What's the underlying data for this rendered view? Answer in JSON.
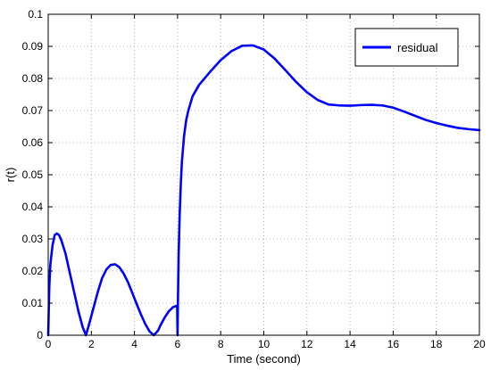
{
  "chart_data": {
    "type": "line",
    "xlabel": "Time (second)",
    "ylabel": "r(t)",
    "xlim": [
      0,
      20
    ],
    "ylim": [
      0,
      0.1
    ],
    "xticks": [
      0,
      2,
      4,
      6,
      8,
      10,
      12,
      14,
      16,
      18,
      20
    ],
    "yticks": [
      0,
      0.01,
      0.02,
      0.03,
      0.04,
      0.05,
      0.06,
      0.07,
      0.08,
      0.09,
      0.1
    ],
    "grid": true,
    "legend": {
      "position": "top-right",
      "entries": [
        "residual"
      ]
    },
    "series": [
      {
        "name": "residual",
        "color": "#0000ff",
        "x": [
          0,
          0.05,
          0.1,
          0.2,
          0.3,
          0.4,
          0.5,
          0.6,
          0.8,
          1.0,
          1.2,
          1.4,
          1.6,
          1.75,
          1.9,
          2.1,
          2.3,
          2.5,
          2.7,
          2.9,
          3.1,
          3.3,
          3.5,
          3.7,
          3.9,
          4.1,
          4.3,
          4.5,
          4.7,
          4.9,
          5.1,
          5.2,
          5.4,
          5.6,
          5.8,
          5.98,
          6.0,
          6.02,
          6.05,
          6.1,
          6.15,
          6.2,
          6.3,
          6.4,
          6.5,
          6.7,
          7.0,
          7.5,
          8.0,
          8.5,
          9.0,
          9.5,
          10.0,
          10.5,
          11.0,
          11.5,
          12.0,
          12.5,
          13.0,
          13.5,
          14.0,
          14.5,
          15.0,
          15.5,
          16.0,
          16.5,
          17.0,
          17.5,
          18.0,
          18.5,
          19.0,
          19.5,
          20.0
        ],
        "y": [
          0,
          0.015,
          0.022,
          0.028,
          0.0312,
          0.0317,
          0.0312,
          0.0298,
          0.0255,
          0.0195,
          0.0135,
          0.0075,
          0.0025,
          0.0,
          0.0035,
          0.0085,
          0.0135,
          0.0178,
          0.0205,
          0.0219,
          0.0221,
          0.0212,
          0.0192,
          0.0165,
          0.0132,
          0.0098,
          0.0065,
          0.0035,
          0.0012,
          0.0,
          0.0015,
          0.003,
          0.0055,
          0.0075,
          0.0088,
          0.0092,
          0.0,
          0.012,
          0.025,
          0.038,
          0.047,
          0.054,
          0.062,
          0.067,
          0.07,
          0.0745,
          0.078,
          0.082,
          0.0857,
          0.0885,
          0.0902,
          0.0903,
          0.089,
          0.0862,
          0.0826,
          0.0789,
          0.0757,
          0.0733,
          0.0719,
          0.0716,
          0.0715,
          0.0717,
          0.0718,
          0.0716,
          0.0709,
          0.0697,
          0.0684,
          0.0671,
          0.0661,
          0.0653,
          0.0646,
          0.0642,
          0.0639
        ]
      }
    ]
  }
}
